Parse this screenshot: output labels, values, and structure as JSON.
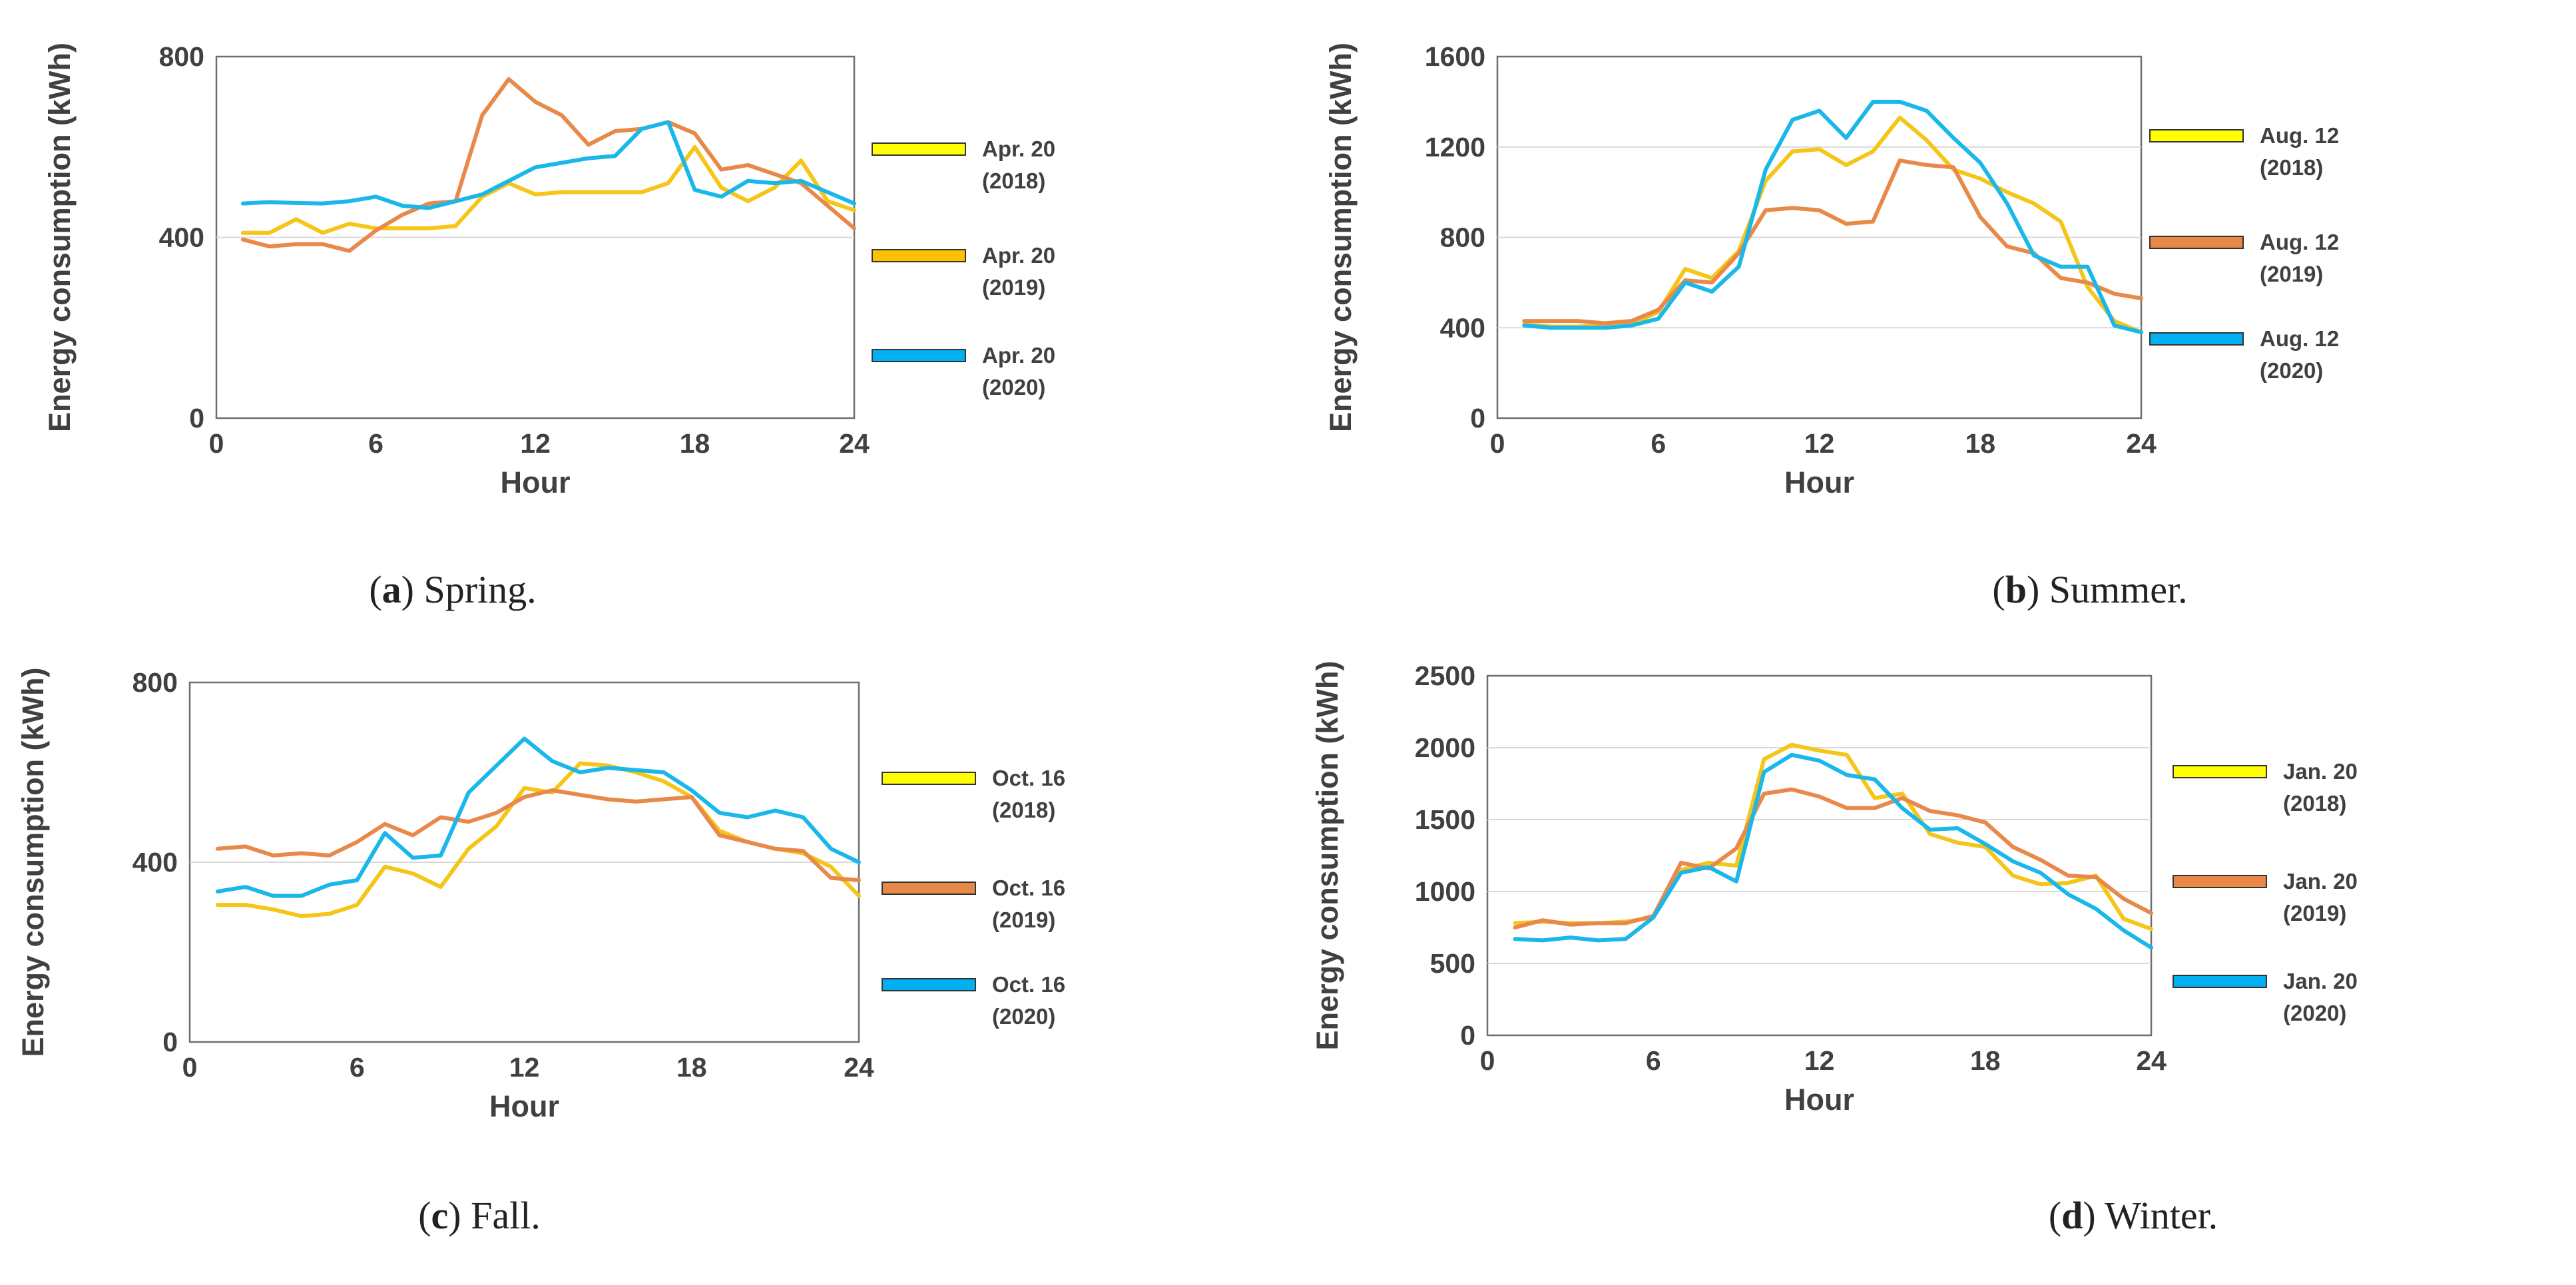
{
  "chart_data": [
    {
      "type": "line",
      "caption_letter": "a",
      "caption_text": "Spring.",
      "xlabel": "Hour",
      "ylabel": "Energy consumption (kWh)",
      "xlim": [
        0,
        24
      ],
      "ylim": [
        0,
        800
      ],
      "xticks": [
        0,
        6,
        12,
        18,
        24
      ],
      "yticks": [
        0,
        400,
        800
      ],
      "grid": "horizontal",
      "legend_position": "right",
      "x": [
        1,
        2,
        3,
        4,
        5,
        6,
        7,
        8,
        9,
        10,
        11,
        12,
        13,
        14,
        15,
        16,
        17,
        18,
        19,
        20,
        21,
        22,
        23,
        24
      ],
      "series": [
        {
          "name": "Apr. 20",
          "name_year": "(2018)",
          "color": "#f5c518",
          "swatch": "#ffff00",
          "values": [
            410,
            410,
            440,
            410,
            430,
            420,
            420,
            420,
            425,
            490,
            520,
            495,
            500,
            500,
            500,
            500,
            520,
            600,
            510,
            480,
            510,
            570,
            480,
            460
          ]
        },
        {
          "name": "Apr. 20",
          "name_year": "(2019)",
          "color": "#e8894a",
          "swatch": "#ffc000",
          "values": [
            395,
            380,
            385,
            385,
            370,
            415,
            450,
            475,
            480,
            670,
            750,
            700,
            670,
            605,
            635,
            640,
            655,
            630,
            550,
            560,
            540,
            520,
            470,
            420
          ]
        },
        {
          "name": "Apr. 20",
          "name_year": "(2020)",
          "color": "#1ab7ea",
          "swatch": "#00b0f0",
          "values": [
            475,
            478,
            476,
            475,
            480,
            490,
            470,
            465,
            480,
            495,
            525,
            555,
            565,
            575,
            580,
            640,
            655,
            505,
            490,
            525,
            520,
            525,
            500,
            475
          ]
        }
      ]
    },
    {
      "type": "line",
      "caption_letter": "b",
      "caption_text": "Summer.",
      "xlabel": "Hour",
      "ylabel": "Energy consumption (kWh)",
      "xlim": [
        0,
        24
      ],
      "ylim": [
        0,
        1600
      ],
      "xticks": [
        0,
        6,
        12,
        18,
        24
      ],
      "yticks": [
        0,
        400,
        800,
        1200,
        1600
      ],
      "grid": "horizontal",
      "legend_position": "right",
      "x": [
        1,
        2,
        3,
        4,
        5,
        6,
        7,
        8,
        9,
        10,
        11,
        12,
        13,
        14,
        15,
        16,
        17,
        18,
        19,
        20,
        21,
        22,
        23,
        24
      ],
      "series": [
        {
          "name": "Aug. 12",
          "name_year": "(2018)",
          "color": "#f5c518",
          "swatch": "#ffff00",
          "values": [
            415,
            405,
            405,
            410,
            415,
            470,
            660,
            620,
            740,
            1050,
            1180,
            1190,
            1120,
            1180,
            1330,
            1230,
            1100,
            1060,
            1000,
            950,
            870,
            580,
            430,
            380
          ]
        },
        {
          "name": "Aug. 12",
          "name_year": "(2019)",
          "color": "#e8894a",
          "swatch": "#e8894a",
          "values": [
            430,
            430,
            430,
            420,
            430,
            480,
            610,
            600,
            730,
            920,
            930,
            920,
            860,
            870,
            1140,
            1120,
            1110,
            890,
            760,
            730,
            620,
            600,
            550,
            530
          ]
        },
        {
          "name": "Aug. 12",
          "name_year": "(2020)",
          "color": "#1ab7ea",
          "swatch": "#00b0f0",
          "values": [
            410,
            400,
            400,
            400,
            410,
            440,
            600,
            560,
            670,
            1100,
            1320,
            1360,
            1240,
            1400,
            1400,
            1360,
            1240,
            1130,
            950,
            720,
            670,
            670,
            410,
            380
          ]
        }
      ]
    },
    {
      "type": "line",
      "caption_letter": "c",
      "caption_text": "Fall.",
      "xlabel": "Hour",
      "ylabel": "Energy consumption (kWh)",
      "xlim": [
        0,
        24
      ],
      "ylim": [
        0,
        800
      ],
      "xticks": [
        0,
        6,
        12,
        18,
        24
      ],
      "yticks": [
        0,
        400,
        800
      ],
      "grid": "horizontal",
      "legend_position": "right",
      "x": [
        1,
        2,
        3,
        4,
        5,
        6,
        7,
        8,
        9,
        10,
        11,
        12,
        13,
        14,
        15,
        16,
        17,
        18,
        19,
        20,
        21,
        22,
        23,
        24
      ],
      "series": [
        {
          "name": "Oct. 16",
          "name_year": "(2018)",
          "color": "#f5c518",
          "swatch": "#ffff00",
          "values": [
            305,
            305,
            295,
            280,
            285,
            305,
            390,
            375,
            345,
            430,
            480,
            565,
            555,
            620,
            615,
            600,
            580,
            545,
            470,
            445,
            430,
            420,
            390,
            325
          ]
        },
        {
          "name": "Oct. 16",
          "name_year": "(2019)",
          "color": "#e8894a",
          "swatch": "#e8894a",
          "values": [
            430,
            435,
            415,
            420,
            415,
            445,
            485,
            460,
            500,
            490,
            510,
            545,
            560,
            550,
            540,
            535,
            540,
            545,
            460,
            445,
            430,
            425,
            365,
            360
          ]
        },
        {
          "name": "Oct. 16",
          "name_year": "(2020)",
          "color": "#1ab7ea",
          "swatch": "#00b0f0",
          "values": [
            335,
            345,
            325,
            325,
            350,
            360,
            465,
            410,
            415,
            555,
            615,
            675,
            625,
            600,
            610,
            605,
            600,
            560,
            510,
            500,
            515,
            500,
            430,
            400
          ]
        }
      ]
    },
    {
      "type": "line",
      "caption_letter": "d",
      "caption_text": "Winter.",
      "xlabel": "Hour",
      "ylabel": "Energy consumption (kWh)",
      "xlim": [
        0,
        24
      ],
      "ylim": [
        0,
        2500
      ],
      "xticks": [
        0,
        6,
        12,
        18,
        24
      ],
      "yticks": [
        0,
        500,
        1000,
        1500,
        2000,
        2500
      ],
      "grid": "horizontal",
      "legend_position": "right",
      "x": [
        1,
        2,
        3,
        4,
        5,
        6,
        7,
        8,
        9,
        10,
        11,
        12,
        13,
        14,
        15,
        16,
        17,
        18,
        19,
        20,
        21,
        22,
        23,
        24
      ],
      "series": [
        {
          "name": "Jan. 20",
          "name_year": "(2018)",
          "color": "#f5c518",
          "swatch": "#ffff00",
          "values": [
            780,
            790,
            780,
            780,
            790,
            820,
            1150,
            1200,
            1180,
            1920,
            2020,
            1980,
            1950,
            1650,
            1680,
            1400,
            1340,
            1310,
            1110,
            1050,
            1060,
            1110,
            810,
            740
          ]
        },
        {
          "name": "Jan. 20",
          "name_year": "(2019)",
          "color": "#e8894a",
          "swatch": "#e8894a",
          "values": [
            750,
            800,
            770,
            780,
            780,
            830,
            1200,
            1160,
            1300,
            1680,
            1710,
            1660,
            1580,
            1580,
            1650,
            1560,
            1530,
            1480,
            1310,
            1220,
            1110,
            1100,
            950,
            850
          ]
        },
        {
          "name": "Jan. 20",
          "name_year": "(2020)",
          "color": "#1ab7ea",
          "swatch": "#00b0f0",
          "values": [
            670,
            660,
            680,
            660,
            670,
            820,
            1130,
            1170,
            1070,
            1830,
            1950,
            1910,
            1810,
            1780,
            1580,
            1430,
            1440,
            1330,
            1210,
            1130,
            980,
            880,
            730,
            610
          ]
        }
      ]
    }
  ]
}
